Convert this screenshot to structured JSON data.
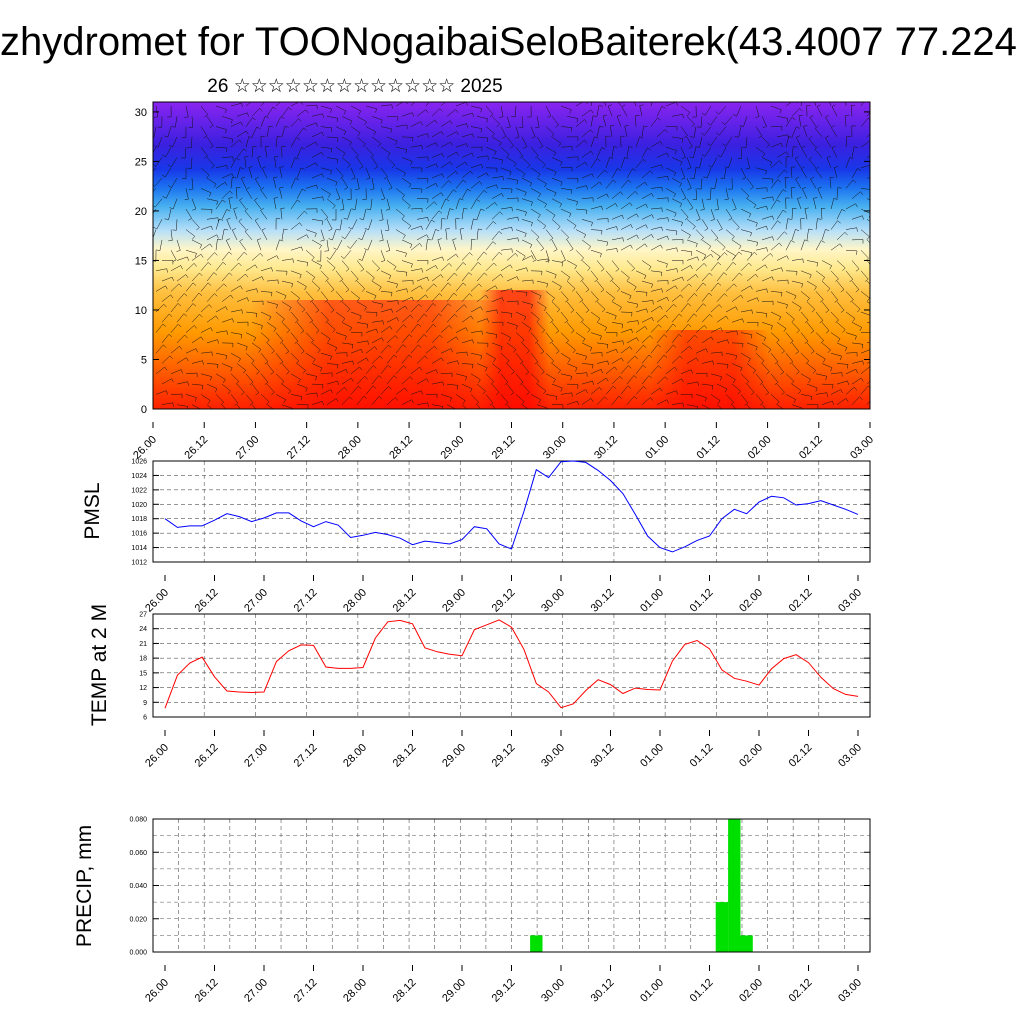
{
  "title": "zhydromet for TOONogaibaiSeloBaiterek(43.4007 77.224",
  "subtitle": "26 ☆☆☆☆☆☆☆☆☆☆☆☆☆ 2025",
  "chart_data": [
    {
      "type": "heatmap",
      "name": "vertical-cross-section",
      "ylim": [
        0,
        31
      ],
      "yticks": [
        "0",
        "5",
        "10",
        "15",
        "20",
        "25",
        "30"
      ],
      "xticks": [
        "26.00",
        "26.12",
        "27.00",
        "27.12",
        "28.00",
        "28.12",
        "29.00",
        "29.12",
        "30.00",
        "30.12",
        "01.00",
        "01.12",
        "02.00",
        "02.12",
        "03.00"
      ],
      "colorscale": [
        "#ff0000",
        "#ff6a00",
        "#ffa000",
        "#ffd27a",
        "#fff7c0",
        "#a8d8f0",
        "#50b0f0",
        "#2060f0",
        "#3020e0",
        "#8020f0"
      ],
      "overlay": "wind barbs"
    },
    {
      "type": "line",
      "name": "pmsl",
      "ylabel": "PMSL",
      "ylim": [
        1012,
        1026
      ],
      "yticks": [
        "1012",
        "1014",
        "1016",
        "1018",
        "1020",
        "1022",
        "1024",
        "1026"
      ],
      "xticks": [
        "26.00",
        "26.12",
        "27.00",
        "27.12",
        "28.00",
        "28.12",
        "29.00",
        "29.12",
        "30.00",
        "30.12",
        "01.00",
        "01.12",
        "02.00",
        "02.12",
        "03.00"
      ],
      "color": "#0000ff",
      "values": [
        1018.0,
        1016.8,
        1017.0,
        1017.0,
        1017.8,
        1018.7,
        1018.3,
        1017.6,
        1018.1,
        1018.8,
        1018.8,
        1017.7,
        1016.9,
        1017.6,
        1017.1,
        1015.4,
        1015.7,
        1016.1,
        1015.8,
        1015.3,
        1014.4,
        1014.9,
        1014.7,
        1014.5,
        1015.1,
        1016.9,
        1016.6,
        1014.5,
        1013.8,
        1019.0,
        1024.8,
        1023.7,
        1025.9,
        1026.0,
        1025.8,
        1024.7,
        1023.3,
        1021.5,
        1018.6,
        1015.6,
        1014.0,
        1013.4,
        1014.1,
        1015.0,
        1015.6,
        1018.0,
        1019.3,
        1018.7,
        1020.3,
        1021.1,
        1020.9,
        1019.9,
        1020.1,
        1020.5,
        1019.9,
        1019.3,
        1018.6
      ]
    },
    {
      "type": "line",
      "name": "temp-2m",
      "ylabel": "TEMP at 2 M",
      "ylim": [
        6,
        27
      ],
      "yticks": [
        "6",
        "9",
        "12",
        "15",
        "18",
        "21",
        "24",
        "27"
      ],
      "xticks": [
        "26.00",
        "26.12",
        "27.00",
        "27.12",
        "28.00",
        "28.12",
        "29.00",
        "29.12",
        "30.00",
        "30.12",
        "01.00",
        "01.12",
        "02.00",
        "02.12",
        "03.00"
      ],
      "color": "#ff0000",
      "values": [
        7.8,
        14.5,
        17.0,
        18.2,
        14.2,
        11.3,
        11.1,
        11.0,
        11.1,
        17.3,
        19.5,
        20.7,
        20.6,
        16.2,
        15.9,
        15.9,
        16.1,
        22.1,
        25.4,
        25.7,
        25.0,
        20.1,
        19.3,
        18.8,
        18.5,
        23.8,
        24.8,
        25.8,
        24.3,
        19.8,
        12.8,
        11.1,
        7.9,
        8.7,
        11.4,
        13.6,
        12.6,
        10.8,
        11.9,
        11.6,
        11.5,
        17.4,
        20.8,
        21.6,
        19.9,
        15.6,
        13.9,
        13.3,
        12.5,
        15.8,
        17.9,
        18.7,
        17.1,
        14.1,
        11.8,
        10.6,
        10.2
      ]
    },
    {
      "type": "bar",
      "name": "precip",
      "ylabel": "PRECIP, mm",
      "ylim": [
        0,
        0.08
      ],
      "yticks": [
        "0.000",
        "0.020",
        "0.040",
        "0.060",
        "0.080"
      ],
      "xticks": [
        "26.00",
        "26.12",
        "27.00",
        "27.12",
        "28.00",
        "28.12",
        "29.00",
        "29.12",
        "30.00",
        "30.12",
        "01.00",
        "01.12",
        "02.00",
        "02.12",
        "03.00"
      ],
      "color": "#00e000",
      "bars": [
        {
          "hour": 90,
          "value": 0.01
        },
        {
          "hour": 135,
          "value": 0.03
        },
        {
          "hour": 138,
          "value": 0.08
        },
        {
          "hour": 141,
          "value": 0.01
        }
      ]
    }
  ]
}
